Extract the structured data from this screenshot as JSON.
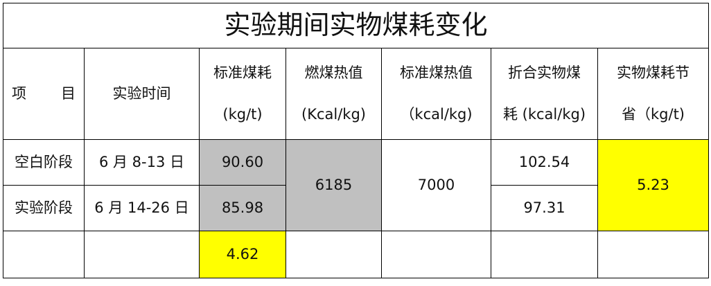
{
  "title": "实验期间实物煤耗变化",
  "headers": {
    "item": [
      "项",
      "目"
    ],
    "time": "实验时间",
    "std_coal": {
      "line1": "标准煤耗",
      "line2": "(kg/t)"
    },
    "burn_heat": {
      "line1": "燃煤热值",
      "line2": "(Kcal/kg)"
    },
    "std_heat": {
      "line1": "标准煤热值",
      "line2": "（kcal/kg)"
    },
    "equiv": {
      "line1": "折合实物煤",
      "line2": "耗 (kcal/kg)"
    },
    "saving": {
      "line1": "实物煤耗节",
      "line2": "省（kg/t)"
    }
  },
  "rows": [
    {
      "item": "空白阶段",
      "time": "6 月 8-13 日",
      "std_coal": "90.60",
      "equiv": "102.54"
    },
    {
      "item": "实验阶段",
      "time": "6 月 14-26 日",
      "std_coal": "85.98",
      "equiv": "97.31"
    }
  ],
  "shared": {
    "burn_heat": "6185",
    "std_heat": "7000",
    "saving": "5.23"
  },
  "std_coal_diff": "4.62",
  "colors": {
    "gray": "#c0c0c0",
    "yellow": "#ffff00"
  }
}
